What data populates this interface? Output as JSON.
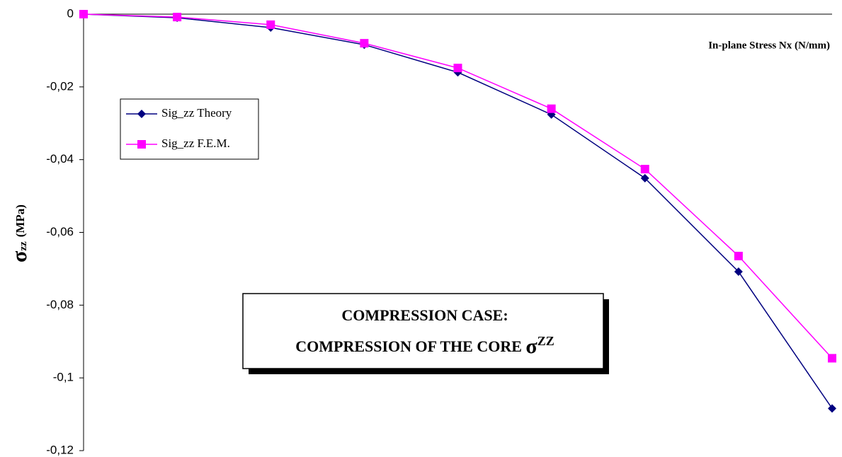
{
  "chart_data": {
    "type": "line",
    "x_label": "In-plane Stress Nx (N/mm)",
    "y_label": {
      "symbol": "σ",
      "subscript": "zz",
      "unit": "(MPa)"
    },
    "annotation": {
      "lines": [
        "COMPRESSION CASE:",
        "COMPRESSION OF THE CORE"
      ],
      "symbol": "σ",
      "superscript": "ZZ"
    },
    "categories": [
      null,
      null,
      null,
      null,
      null,
      null,
      null,
      null,
      null
    ],
    "series": [
      {
        "name": "Sig_zz Theory",
        "color": "#000080",
        "marker": "diamond",
        "values": [
          0,
          -0.001,
          -0.0037,
          -0.0084,
          -0.016,
          -0.0276,
          -0.0451,
          -0.0708,
          -0.1084
        ]
      },
      {
        "name": "Sig_zz F.E.M.",
        "color": "#ff00ff",
        "marker": "square",
        "values": [
          0,
          -0.0008,
          -0.0029,
          -0.008,
          -0.0148,
          -0.026,
          -0.0426,
          -0.0665,
          -0.0946
        ]
      }
    ],
    "ylim": [
      -0.12,
      0
    ],
    "yticks": [
      {
        "value": -0.12,
        "label": "-0,12"
      },
      {
        "value": -0.1,
        "label": "-0,1"
      },
      {
        "value": -0.08,
        "label": "-0,08"
      },
      {
        "value": -0.06,
        "label": "-0,06"
      },
      {
        "value": -0.04,
        "label": "-0,04"
      },
      {
        "value": -0.02,
        "label": "-0,02"
      },
      0
    ],
    "legend": "upper left",
    "grid": false
  }
}
